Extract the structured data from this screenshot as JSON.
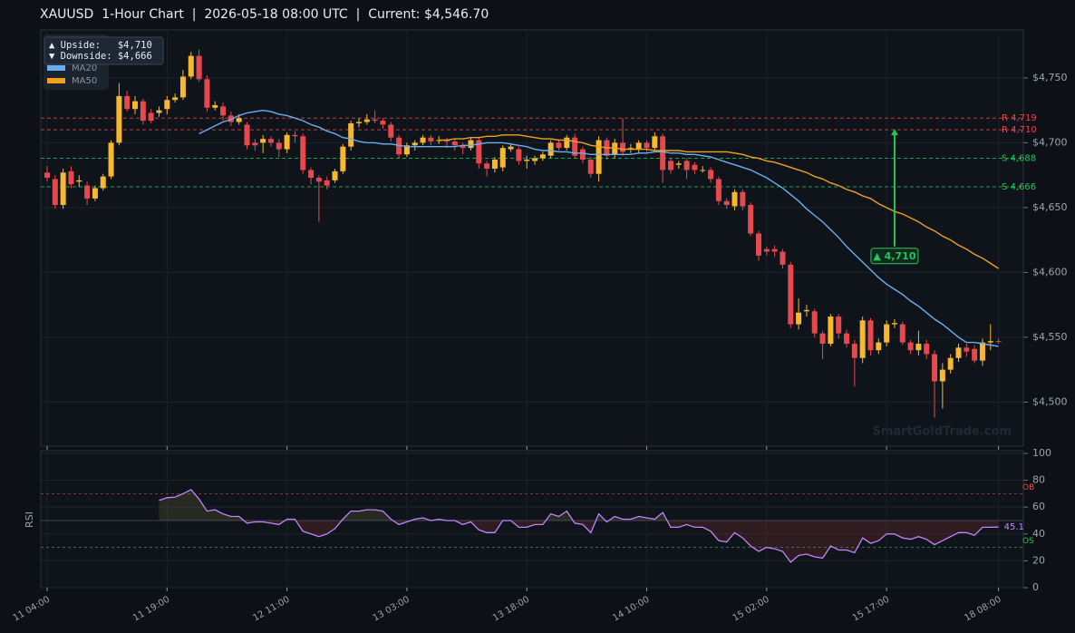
{
  "chart_data": [
    {
      "type": "candlestick",
      "title": "XAUUSD  1-Hour Chart  |  2026-05-18 08:00 UTC  |  Current: $4,546.70",
      "categories": [
        "11 04:00",
        null,
        null,
        null,
        null,
        null,
        null,
        null,
        null,
        null,
        null,
        null,
        null,
        null,
        null,
        "11 19:00",
        null,
        null,
        null,
        null,
        null,
        null,
        null,
        null,
        null,
        null,
        null,
        null,
        null,
        null,
        "12 11:00",
        null,
        null,
        null,
        null,
        null,
        null,
        null,
        null,
        null,
        null,
        null,
        null,
        null,
        null,
        "13 03:00",
        null,
        null,
        null,
        null,
        null,
        null,
        null,
        null,
        null,
        null,
        null,
        null,
        null,
        null,
        "13 18:00",
        null,
        null,
        null,
        null,
        null,
        null,
        null,
        null,
        null,
        null,
        null,
        null,
        null,
        null,
        "14 10:00",
        null,
        null,
        null,
        null,
        null,
        null,
        null,
        null,
        null,
        null,
        null,
        null,
        null,
        null,
        "15 02:00",
        null,
        null,
        null,
        null,
        null,
        null,
        null,
        null,
        null,
        null,
        null,
        null,
        null,
        null,
        "15 17:00",
        null,
        null,
        null,
        null,
        null,
        null,
        null,
        null,
        null,
        null,
        null,
        null,
        null,
        "18 08:00"
      ],
      "ohlc": [
        [
          4677,
          4682,
          4670,
          4673
        ],
        [
          4672,
          4675,
          4649,
          4652
        ],
        [
          4652,
          4680,
          4649,
          4677
        ],
        [
          4678,
          4682,
          4665,
          4668
        ],
        [
          4670,
          4675,
          4666,
          4671
        ],
        [
          4667,
          4670,
          4652,
          4657
        ],
        [
          4657,
          4667,
          4655,
          4665
        ],
        [
          4665,
          4676,
          4663,
          4674
        ],
        [
          4674,
          4702,
          4672,
          4700
        ],
        [
          4700,
          4746,
          4698,
          4736
        ],
        [
          4736,
          4740,
          4724,
          4726
        ],
        [
          4726,
          4736,
          4722,
          4732
        ],
        [
          4732,
          4734,
          4714,
          4717
        ],
        [
          4723,
          4726,
          4715,
          4717
        ],
        [
          4723,
          4728,
          4720,
          4725
        ],
        [
          4726,
          4736,
          4722,
          4733
        ],
        [
          4733,
          4738,
          4731,
          4735
        ],
        [
          4735,
          4756,
          4733,
          4751
        ],
        [
          4751,
          4770,
          4749,
          4767
        ],
        [
          4767,
          4772,
          4747,
          4749
        ],
        [
          4749,
          4752,
          4724,
          4727
        ],
        [
          4727,
          4732,
          4725,
          4729
        ],
        [
          4728,
          4731,
          4717,
          4721
        ],
        [
          4721,
          4724,
          4713,
          4716
        ],
        [
          4716,
          4722,
          4714,
          4719
        ],
        [
          4714,
          4716,
          4695,
          4698
        ],
        [
          4700,
          4703,
          4694,
          4698
        ],
        [
          4700,
          4706,
          4692,
          4703
        ],
        [
          4703,
          4705,
          4697,
          4700
        ],
        [
          4700,
          4703,
          4689,
          4695
        ],
        [
          4695,
          4708,
          4692,
          4706
        ],
        [
          4706,
          4709,
          4700,
          4705
        ],
        [
          4705,
          4707,
          4676,
          4679
        ],
        [
          4679,
          4681,
          4668,
          4673
        ],
        [
          4673,
          4675,
          4639,
          4670
        ],
        [
          4671,
          4674,
          4664,
          4667
        ],
        [
          4671,
          4680,
          4669,
          4678
        ],
        [
          4678,
          4699,
          4676,
          4697
        ],
        [
          4697,
          4717,
          4694,
          4715
        ],
        [
          4715,
          4719,
          4712,
          4716
        ],
        [
          4716,
          4722,
          4714,
          4718
        ],
        [
          4718,
          4725,
          4715,
          4717
        ],
        [
          4717,
          4719,
          4711,
          4714
        ],
        [
          4714,
          4716,
          4701,
          4704
        ],
        [
          4704,
          4706,
          4688,
          4691
        ],
        [
          4691,
          4700,
          4689,
          4698
        ],
        [
          4698,
          4702,
          4694,
          4700
        ],
        [
          4700,
          4706,
          4698,
          4704
        ],
        [
          4704,
          4706,
          4698,
          4701
        ],
        [
          4702,
          4705,
          4699,
          4702
        ],
        [
          4702,
          4704,
          4696,
          4701
        ],
        [
          4701,
          4703,
          4694,
          4698
        ],
        [
          4698,
          4700,
          4691,
          4696
        ],
        [
          4696,
          4704,
          4694,
          4702
        ],
        [
          4702,
          4704,
          4680,
          4684
        ],
        [
          4684,
          4686,
          4674,
          4680
        ],
        [
          4680,
          4689,
          4677,
          4687
        ],
        [
          4681,
          4698,
          4678,
          4696
        ],
        [
          4695,
          4699,
          4693,
          4697
        ],
        [
          4695,
          4697,
          4683,
          4686
        ],
        [
          4686,
          4690,
          4680,
          4687
        ],
        [
          4686,
          4690,
          4683,
          4688
        ],
        [
          4688,
          4693,
          4686,
          4691
        ],
        [
          4690,
          4702,
          4688,
          4700
        ],
        [
          4700,
          4702,
          4694,
          4696
        ],
        [
          4696,
          4706,
          4694,
          4704
        ],
        [
          4704,
          4707,
          4688,
          4690
        ],
        [
          4695,
          4697,
          4684,
          4687
        ],
        [
          4687,
          4689,
          4673,
          4676
        ],
        [
          4676,
          4705,
          4670,
          4702
        ],
        [
          4702,
          4704,
          4687,
          4690
        ],
        [
          4691,
          4703,
          4688,
          4700
        ],
        [
          4700,
          4719,
          4690,
          4693
        ],
        [
          4695,
          4699,
          4692,
          4696
        ],
        [
          4695,
          4702,
          4692,
          4700
        ],
        [
          4700,
          4702,
          4693,
          4696
        ],
        [
          4696,
          4708,
          4694,
          4705
        ],
        [
          4705,
          4707,
          4669,
          4679
        ],
        [
          4686,
          4688,
          4676,
          4679
        ],
        [
          4683,
          4686,
          4680,
          4684
        ],
        [
          4686,
          4688,
          4672,
          4679
        ],
        [
          4683,
          4685,
          4676,
          4679
        ],
        [
          4679,
          4682,
          4677,
          4679
        ],
        [
          4679,
          4681,
          4669,
          4672
        ],
        [
          4672,
          4674,
          4652,
          4655
        ],
        [
          4655,
          4657,
          4649,
          4652
        ],
        [
          4651,
          4664,
          4648,
          4662
        ],
        [
          4662,
          4664,
          4648,
          4651
        ],
        [
          4652,
          4654,
          4628,
          4630
        ],
        [
          4630,
          4632,
          4609,
          4613
        ],
        [
          4618,
          4620,
          4613,
          4616
        ],
        [
          4618,
          4621,
          4612,
          4616
        ],
        [
          4616,
          4618,
          4603,
          4606
        ],
        [
          4606,
          4608,
          4557,
          4560
        ],
        [
          4560,
          4580,
          4556,
          4569
        ],
        [
          4570,
          4575,
          4566,
          4571
        ],
        [
          4570,
          4572,
          4550,
          4553
        ],
        [
          4553,
          4555,
          4533,
          4545
        ],
        [
          4545,
          4568,
          4543,
          4566
        ],
        [
          4566,
          4568,
          4549,
          4553
        ],
        [
          4553,
          4556,
          4542,
          4545
        ],
        [
          4545,
          4548,
          4512,
          4534
        ],
        [
          4534,
          4566,
          4530,
          4563
        ],
        [
          4563,
          4565,
          4536,
          4540
        ],
        [
          4540,
          4549,
          4537,
          4546
        ],
        [
          4546,
          4563,
          4543,
          4560
        ],
        [
          4560,
          4564,
          4557,
          4561
        ],
        [
          4560,
          4562,
          4544,
          4546
        ],
        [
          4546,
          4548,
          4537,
          4540
        ],
        [
          4540,
          4555,
          4536,
          4545
        ],
        [
          4545,
          4548,
          4533,
          4537
        ],
        [
          4537,
          4540,
          4488,
          4516
        ],
        [
          4516,
          4530,
          4495,
          4525
        ],
        [
          4525,
          4537,
          4522,
          4534
        ],
        [
          4534,
          4545,
          4531,
          4542
        ],
        [
          4542,
          4545,
          4535,
          4539
        ],
        [
          4541,
          4544,
          4530,
          4532
        ],
        [
          4532,
          4549,
          4528,
          4546
        ],
        [
          4546,
          4560,
          4540,
          4547
        ],
        [
          4547,
          4549,
          4545,
          4546.7
        ]
      ],
      "up_color": "#f5b82e",
      "down_color": "#e5484d",
      "series": [
        {
          "name": "MA20",
          "color": "#6aaef2",
          "values": [
            null,
            null,
            null,
            null,
            null,
            null,
            null,
            null,
            null,
            null,
            null,
            null,
            null,
            null,
            null,
            null,
            null,
            null,
            null,
            4707,
            4710,
            4713,
            4716,
            4718,
            4721,
            4723,
            4724,
            4725,
            4724,
            4722,
            4721,
            4719,
            4717,
            4714,
            4712,
            4709,
            4707,
            4704,
            4703,
            4701,
            4700,
            4700,
            4699,
            4699,
            4698,
            4697,
            4697,
            4697,
            4697,
            4697,
            4697,
            4697,
            4698,
            4698,
            4699,
            4700,
            4700,
            4700,
            4699,
            4698,
            4697,
            4695,
            4694,
            4694,
            4693,
            4693,
            4692,
            4692,
            4691,
            4691,
            4691,
            4691,
            4691,
            4691,
            4692,
            4692,
            4693,
            4693,
            4692,
            4692,
            4691,
            4691,
            4690,
            4689,
            4687,
            4685,
            4683,
            4681,
            4679,
            4676,
            4673,
            4669,
            4665,
            4660,
            4655,
            4649,
            4644,
            4639,
            4633,
            4627,
            4620,
            4614,
            4608,
            4602,
            4596,
            4591,
            4587,
            4583,
            4578,
            4574,
            4569,
            4564,
            4560,
            4555,
            4550,
            4546,
            4546,
            4545,
            4544,
            4543
          ]
        },
        {
          "name": "MA50",
          "color": "#f0a020",
          "values": [
            null,
            null,
            null,
            null,
            null,
            null,
            null,
            null,
            null,
            null,
            null,
            null,
            null,
            null,
            null,
            null,
            null,
            null,
            null,
            null,
            null,
            null,
            null,
            null,
            null,
            null,
            null,
            null,
            null,
            null,
            null,
            null,
            null,
            null,
            null,
            null,
            null,
            null,
            null,
            null,
            null,
            null,
            null,
            null,
            null,
            null,
            null,
            null,
            null,
            4702,
            4702,
            4703,
            4703,
            4704,
            4704,
            4705,
            4705,
            4706,
            4706,
            4706,
            4705,
            4704,
            4703,
            4703,
            4702,
            4702,
            4701,
            4700,
            4698,
            4697,
            4696,
            4696,
            4695,
            4695,
            4695,
            4695,
            4694,
            4694,
            4694,
            4694,
            4693,
            4693,
            4693,
            4693,
            4693,
            4693,
            4692,
            4691,
            4689,
            4688,
            4686,
            4685,
            4683,
            4681,
            4679,
            4677,
            4674,
            4672,
            4669,
            4667,
            4664,
            4662,
            4659,
            4657,
            4653,
            4650,
            4647,
            4645,
            4642,
            4639,
            4635,
            4632,
            4628,
            4625,
            4621,
            4618,
            4614,
            4611,
            4607,
            4603
          ]
        }
      ],
      "ylim": [
        4466,
        4787
      ],
      "yticks": [
        {
          "value": 4500,
          "label": "$4,500"
        },
        {
          "value": 4550,
          "label": "$4,550"
        },
        {
          "value": 4600,
          "label": "$4,600"
        },
        {
          "value": 4650,
          "label": "$4,650"
        },
        {
          "value": 4700,
          "label": "$4,700"
        },
        {
          "value": 4750,
          "label": "$4,750"
        }
      ],
      "grid": true,
      "levels": [
        {
          "value": 4719,
          "label": "R 4,719",
          "color": "#e5484d"
        },
        {
          "value": 4710,
          "label": "R 4,710",
          "color": "#e5484d"
        },
        {
          "value": 4688,
          "label": "S 4,688",
          "color": "#22c55e"
        },
        {
          "value": 4666,
          "label": "S 4,666",
          "color": "#22c55e"
        }
      ],
      "annotation": {
        "text": "▲ 4,710",
        "index": 106,
        "from": 4613,
        "to": 4710,
        "color": "#22c55e"
      },
      "info": [
        "▲ Upside:   $4,710",
        "▼ Downside: $4,666"
      ],
      "watermark": "SmartGoldTrade.com"
    },
    {
      "type": "line",
      "ylabel": "RSI",
      "color": "#c084fc",
      "values": [
        null,
        null,
        null,
        null,
        null,
        null,
        null,
        null,
        null,
        null,
        null,
        null,
        null,
        null,
        65,
        67,
        67.5,
        70,
        73,
        66,
        57,
        58,
        55,
        53,
        53,
        48,
        49,
        49,
        48,
        47,
        51,
        51,
        42,
        40,
        38,
        40,
        44,
        51,
        57,
        57,
        58,
        58,
        57,
        51,
        47,
        49,
        51,
        52,
        50,
        51,
        50,
        50,
        47,
        49,
        43,
        41,
        41,
        50,
        50,
        45,
        45,
        47,
        47,
        55,
        53,
        57,
        48,
        47,
        41,
        55,
        49,
        53,
        51,
        51,
        53,
        52,
        51,
        56,
        45,
        45,
        47,
        45,
        45,
        42,
        35,
        34,
        41,
        37,
        31,
        27,
        30,
        29,
        27,
        19,
        24,
        25,
        23,
        22,
        31,
        28,
        28,
        26,
        37,
        33,
        35,
        40,
        40,
        37,
        36,
        38,
        36,
        32,
        35,
        38,
        41,
        41,
        39,
        45,
        45,
        45.1
      ],
      "midline": 50,
      "thresholds": [
        {
          "value": 70,
          "label": "OB",
          "color": "#e5484d"
        },
        {
          "value": 30,
          "label": "OS",
          "color": "#22c55e"
        }
      ],
      "ylim": [
        0,
        102
      ],
      "yticks": [
        0,
        20,
        40,
        60,
        80,
        100
      ],
      "grid": true
    }
  ]
}
